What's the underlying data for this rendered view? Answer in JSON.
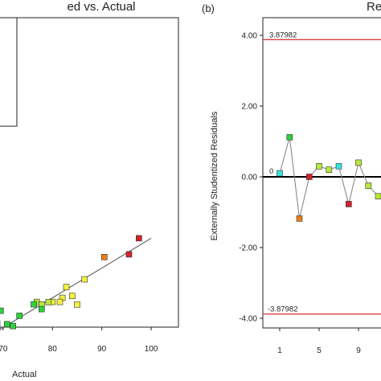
{
  "colors": {
    "red": "#d2222a",
    "orange": "#f07d19",
    "yellow": "#f4f13c",
    "yellowgreen": "#b7e83a",
    "green": "#2fd13c",
    "cyan": "#37e4e0",
    "fit_line": "#6a6a6a",
    "limit_line": "#d94040"
  },
  "chart_data": [
    {
      "type": "scatter",
      "title": "ed vs. Actual",
      "xlabel": "Actual",
      "xlim": [
        66,
        102
      ],
      "ylim": [
        60,
        102
      ],
      "xticks": [
        "70",
        "80",
        "90",
        "100"
      ],
      "fit_line": [
        [
          66,
          60.8
        ],
        [
          100,
          98.5
        ]
      ],
      "points": [
        {
          "x": 97.5,
          "y": 98.5,
          "color": "red"
        },
        {
          "x": 95.5,
          "y": 92.5,
          "color": "red"
        },
        {
          "x": 90.5,
          "y": 91.5,
          "color": "orange"
        },
        {
          "x": 86.5,
          "y": 83.2,
          "color": "yellow"
        },
        {
          "x": 82.8,
          "y": 80.3,
          "color": "yellow"
        },
        {
          "x": 84.0,
          "y": 77.0,
          "color": "yellow"
        },
        {
          "x": 82.0,
          "y": 76.3,
          "color": "yellow"
        },
        {
          "x": 80.0,
          "y": 74.8,
          "color": "yellow"
        },
        {
          "x": 81.5,
          "y": 74.8,
          "color": "yellow"
        },
        {
          "x": 85.0,
          "y": 73.8,
          "color": "yellow"
        },
        {
          "x": 79.2,
          "y": 74.7,
          "color": "yellowgreen"
        },
        {
          "x": 76.8,
          "y": 74.8,
          "color": "yellowgreen"
        },
        {
          "x": 77.8,
          "y": 73.8,
          "color": "yellowgreen"
        },
        {
          "x": 76.2,
          "y": 73.9,
          "color": "green"
        },
        {
          "x": 77.8,
          "y": 72.1,
          "color": "green"
        },
        {
          "x": 68.7,
          "y": 74.9,
          "color": "green"
        },
        {
          "x": 69.5,
          "y": 71.5,
          "color": "green"
        },
        {
          "x": 73.3,
          "y": 69.6,
          "color": "green"
        },
        {
          "x": 67.0,
          "y": 68.6,
          "color": "green"
        },
        {
          "x": 68.8,
          "y": 66.8,
          "color": "green"
        },
        {
          "x": 70.8,
          "y": 66.5,
          "color": "green"
        },
        {
          "x": 72.0,
          "y": 65.8,
          "color": "green"
        },
        {
          "x": 68.8,
          "y": 65.3,
          "color": "green"
        }
      ]
    },
    {
      "type": "line",
      "panel_label": "(b)",
      "title": "Re",
      "ylabel": "Externally Studentized Residuals",
      "ylim": [
        -4.6,
        4.6
      ],
      "xlim": [
        0,
        11.7
      ],
      "yticks": [
        "4.00",
        "2.00",
        "0.00",
        "-2.00",
        "-4.00"
      ],
      "xticks": [
        "1",
        "5",
        "9"
      ],
      "upper_limit": 3.87982,
      "lower_limit": -3.87982,
      "upper_limit_label": "3.87982",
      "lower_limit_label": "-3.87982",
      "zero_label": "0",
      "series": [
        {
          "x": [
            1,
            2,
            3,
            4,
            5,
            6,
            7,
            8,
            9,
            10,
            11
          ],
          "y": [
            0.1,
            1.12,
            -1.18,
            0.0,
            0.3,
            0.2,
            0.3,
            -0.77,
            0.4,
            -0.25,
            -0.55
          ],
          "colors": [
            "cyan",
            "green",
            "orange",
            "red",
            "yellowgreen",
            "yellowgreen",
            "cyan",
            "red",
            "yellowgreen",
            "yellowgreen",
            "yellowgreen"
          ]
        }
      ]
    }
  ]
}
